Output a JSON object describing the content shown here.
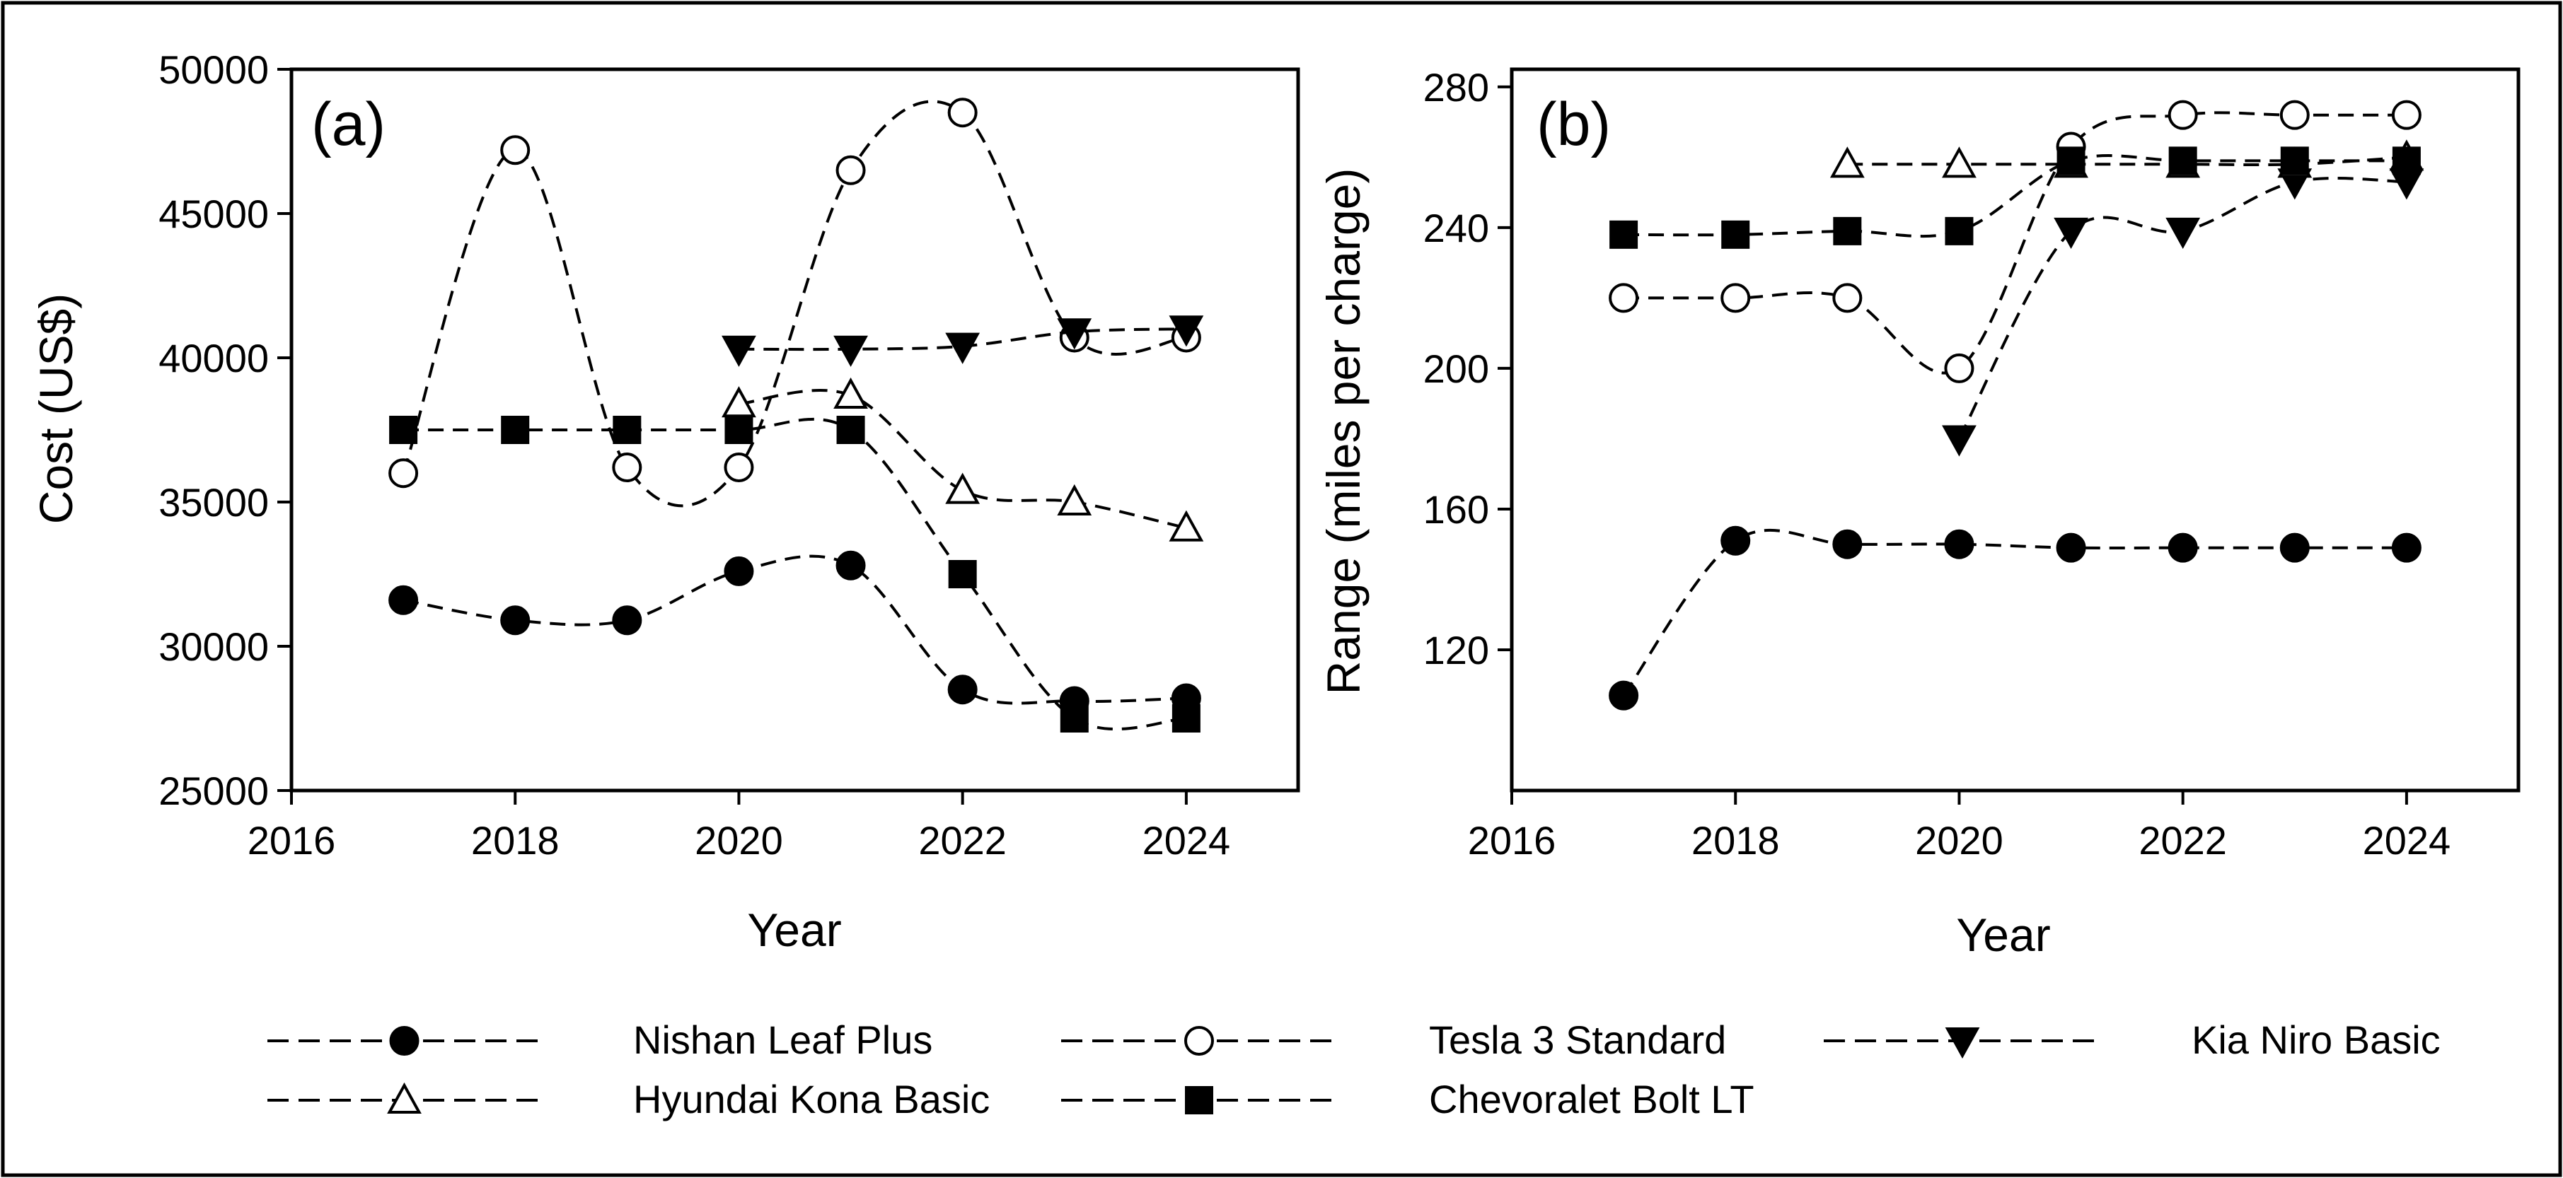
{
  "colors": {
    "line": "#000000",
    "filled_marker": "#000000",
    "open_marker": "#ffffff"
  },
  "chart_data": [
    {
      "type": "line",
      "panel_label": "(a)",
      "title": "",
      "xlabel": "Year",
      "ylabel": "Cost (US$)",
      "xlim": [
        2016,
        2025
      ],
      "ylim": [
        25000,
        50000
      ],
      "xticks": [
        2016,
        2018,
        2020,
        2022,
        2024
      ],
      "yticks": [
        25000,
        30000,
        35000,
        40000,
        45000,
        50000
      ],
      "grid": false,
      "series": [
        {
          "name": "Nishan Leaf Plus",
          "marker": "circle-filled",
          "x": [
            2017,
            2018,
            2019,
            2020,
            2021,
            2022,
            2023,
            2024
          ],
          "y": [
            31600,
            30900,
            30900,
            32600,
            32800,
            28500,
            28100,
            28200
          ]
        },
        {
          "name": "Tesla 3 Standard",
          "marker": "circle-open",
          "x": [
            2017,
            2018,
            2019,
            2020,
            2021,
            2022,
            2023,
            2024
          ],
          "y": [
            36000,
            47200,
            36200,
            36200,
            46500,
            48500,
            40700,
            40700
          ]
        },
        {
          "name": "Kia Niro Basic",
          "marker": "triangle-down-filled",
          "x": [
            2020,
            2021,
            2022,
            2023,
            2024
          ],
          "y": [
            40300,
            40300,
            40400,
            40900,
            41000
          ]
        },
        {
          "name": "Hyundai Kona Basic",
          "marker": "triangle-up-open",
          "x": [
            2020,
            2021,
            2022,
            2023,
            2024
          ],
          "y": [
            38400,
            38700,
            35400,
            35000,
            34100
          ]
        },
        {
          "name": "Chevoralet Bolt LT",
          "marker": "square-filled",
          "x": [
            2017,
            2018,
            2019,
            2020,
            2021,
            2022,
            2023,
            2024
          ],
          "y": [
            37500,
            37500,
            37500,
            37500,
            37500,
            32500,
            27500,
            27500
          ]
        }
      ]
    },
    {
      "type": "line",
      "panel_label": "(b)",
      "title": "",
      "xlabel": "Year",
      "ylabel": "Range (miles per charge)",
      "xlim": [
        2016,
        2025
      ],
      "ylim": [
        80,
        285
      ],
      "xticks": [
        2016,
        2018,
        2020,
        2022,
        2024
      ],
      "yticks": [
        120,
        160,
        200,
        240,
        280
      ],
      "grid": false,
      "series": [
        {
          "name": "Nishan Leaf Plus",
          "marker": "circle-filled",
          "x": [
            2017,
            2018,
            2019,
            2020,
            2021,
            2022,
            2023,
            2024
          ],
          "y": [
            107,
            151,
            150,
            150,
            149,
            149,
            149,
            149
          ]
        },
        {
          "name": "Tesla 3 Standard",
          "marker": "circle-open",
          "x": [
            2017,
            2018,
            2019,
            2020,
            2021,
            2022,
            2023,
            2024
          ],
          "y": [
            220,
            220,
            220,
            200,
            263,
            272,
            272,
            272
          ]
        },
        {
          "name": "Kia Niro Basic",
          "marker": "triangle-down-filled",
          "x": [
            2020,
            2021,
            2022,
            2023,
            2024
          ],
          "y": [
            180,
            239,
            239,
            253,
            253
          ]
        },
        {
          "name": "Hyundai Kona Basic",
          "marker": "triangle-up-open",
          "x": [
            2019,
            2020,
            2021,
            2022,
            2023,
            2024
          ],
          "y": [
            258,
            258,
            258,
            258,
            258,
            260
          ]
        },
        {
          "name": "Chevoralet Bolt LT",
          "marker": "square-filled",
          "x": [
            2017,
            2018,
            2019,
            2020,
            2021,
            2022,
            2023,
            2024
          ],
          "y": [
            238,
            238,
            239,
            239,
            259,
            259,
            259,
            259
          ]
        }
      ]
    }
  ],
  "legend": {
    "placement": "bottom",
    "items": [
      {
        "label": "Nishan Leaf Plus",
        "marker": "circle-filled"
      },
      {
        "label": "Tesla 3 Standard",
        "marker": "circle-open"
      },
      {
        "label": "Kia Niro Basic",
        "marker": "triangle-down-filled"
      },
      {
        "label": "Hyundai Kona Basic",
        "marker": "triangle-up-open"
      },
      {
        "label": "Chevoralet Bolt LT",
        "marker": "square-filled"
      }
    ]
  }
}
